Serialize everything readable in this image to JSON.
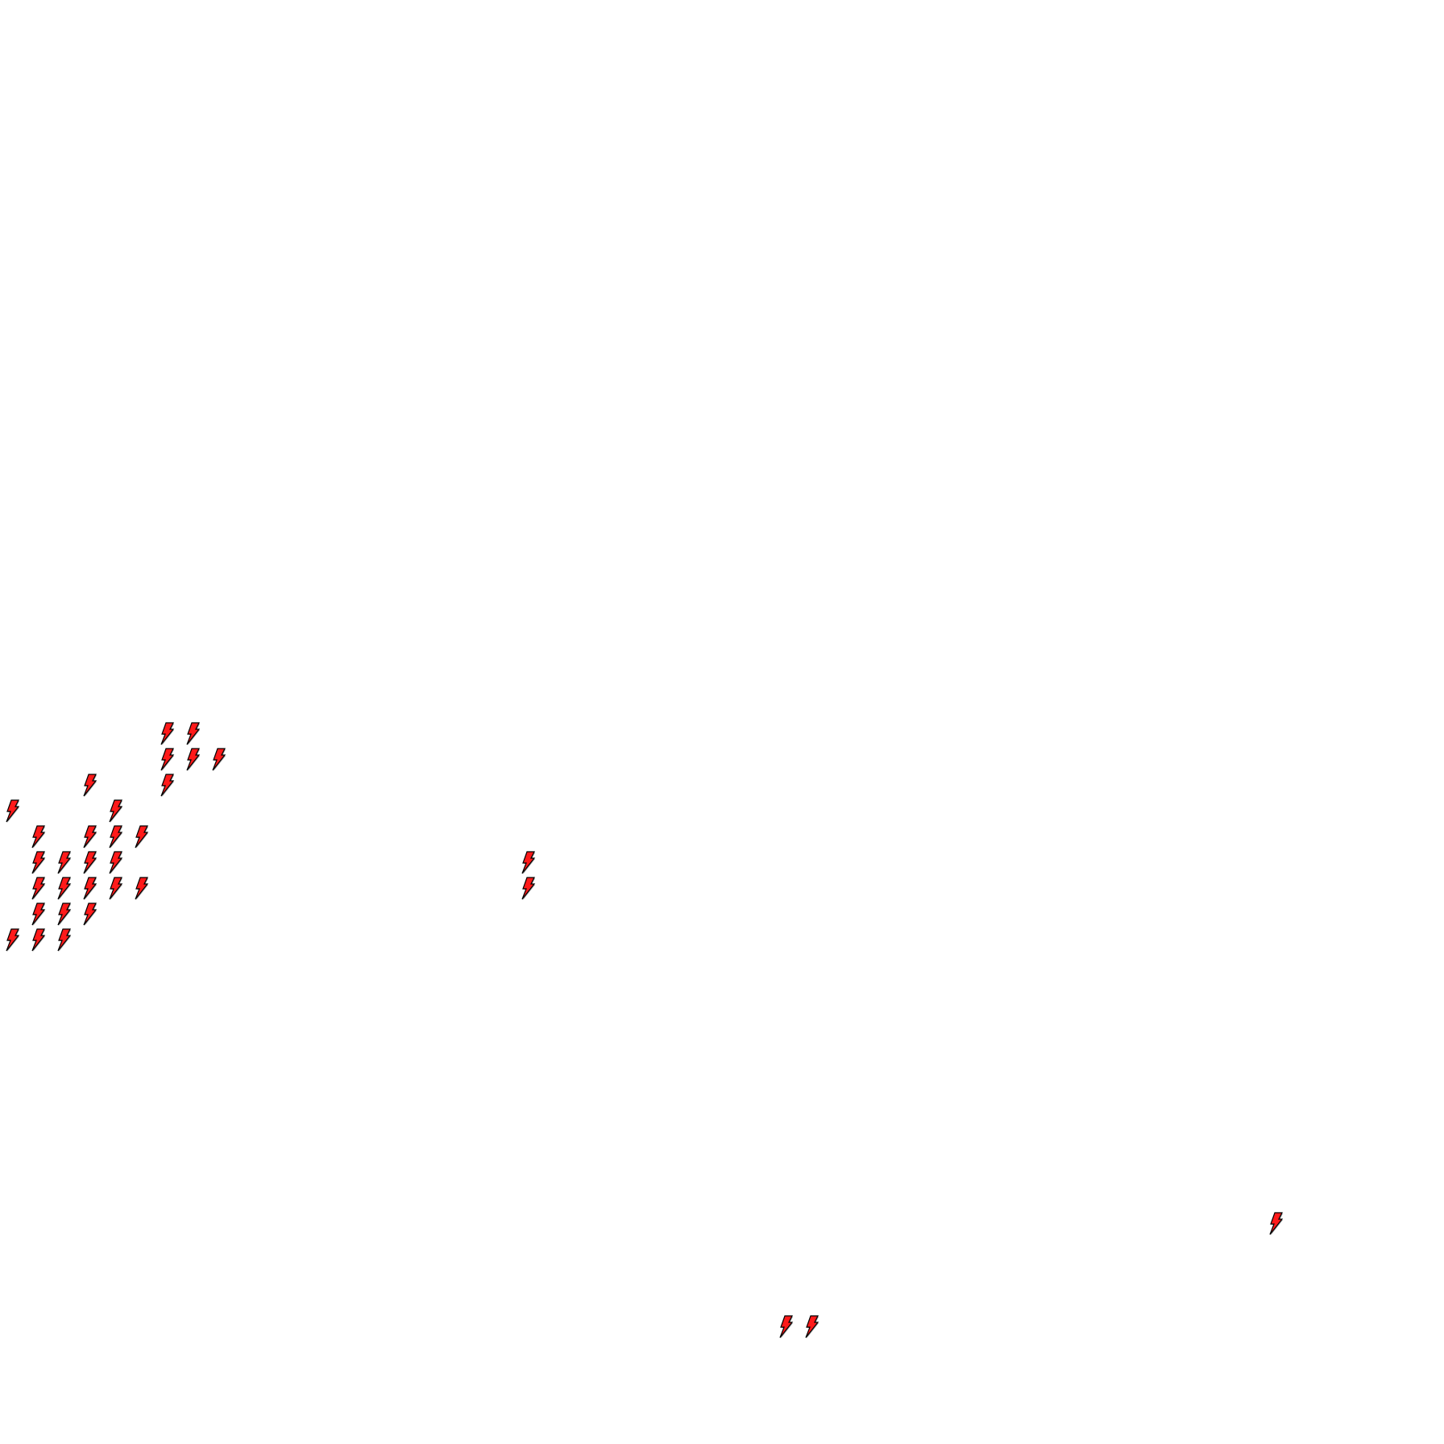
{
  "map": {
    "background_color": "#ffffff",
    "marker": {
      "icon": "lightning-bolt-icon",
      "fill_color": "#ff1a1a",
      "stroke_color": "#000000",
      "shadow_color": "#9a9a9a"
    }
  }
}
